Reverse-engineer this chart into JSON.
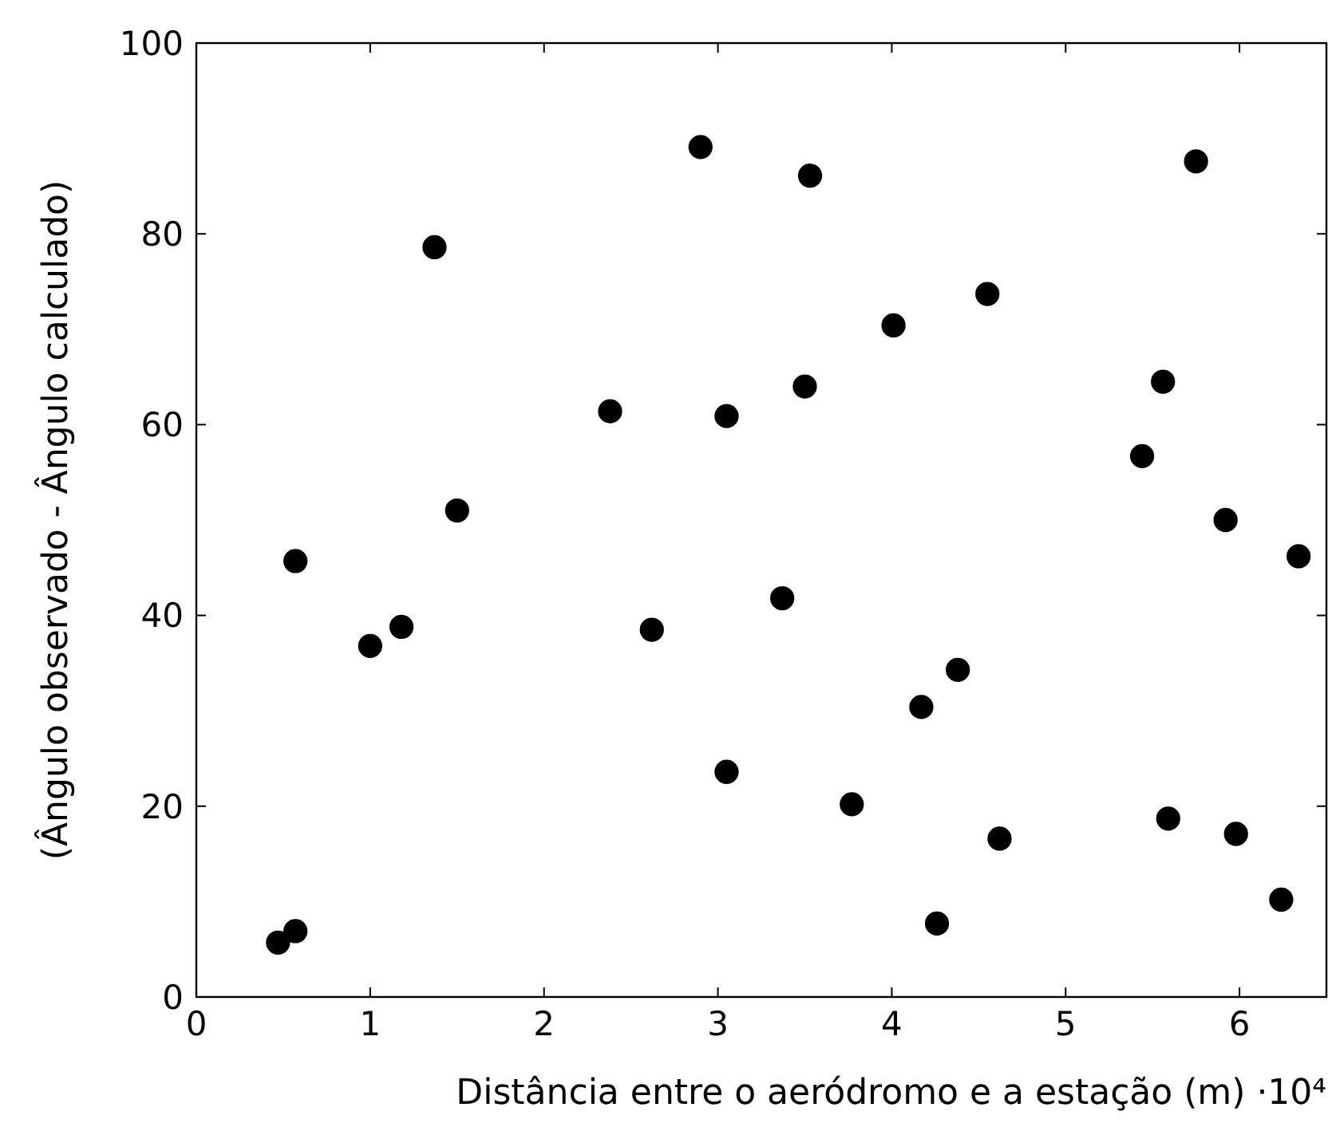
{
  "chart_data": {
    "type": "scatter",
    "xlabel": "Distância entre o aeródromo e a estação (m) ·10⁴",
    "ylabel": "(Ângulo observado - Ângulo calculado)",
    "xlim": [
      0,
      6.5
    ],
    "ylim": [
      0,
      100
    ],
    "xticks": [
      0,
      1,
      2,
      3,
      4,
      5,
      6
    ],
    "yticks": [
      0,
      20,
      40,
      60,
      80,
      100
    ],
    "grid": false,
    "marker": "circle",
    "series": [
      {
        "color": "#000000",
        "x": [
          0.47,
          0.57,
          0.57,
          1.0,
          1.18,
          1.37,
          1.5,
          2.38,
          2.62,
          2.9,
          3.05,
          3.05,
          3.37,
          3.53,
          3.5,
          3.77,
          4.01,
          4.55,
          4.17,
          4.38,
          4.26,
          4.62,
          5.44,
          5.56,
          5.75,
          5.59,
          5.92,
          5.98,
          6.24,
          6.34
        ],
        "values": [
          5.7,
          6.9,
          45.7,
          36.8,
          38.8,
          78.6,
          51.0,
          61.4,
          38.5,
          89.1,
          60.9,
          23.6,
          41.8,
          86.1,
          64.0,
          20.2,
          70.4,
          73.7,
          30.4,
          34.3,
          7.7,
          16.6,
          56.7,
          64.5,
          87.6,
          18.7,
          50.0,
          17.1,
          10.2,
          46.2
        ]
      }
    ]
  }
}
